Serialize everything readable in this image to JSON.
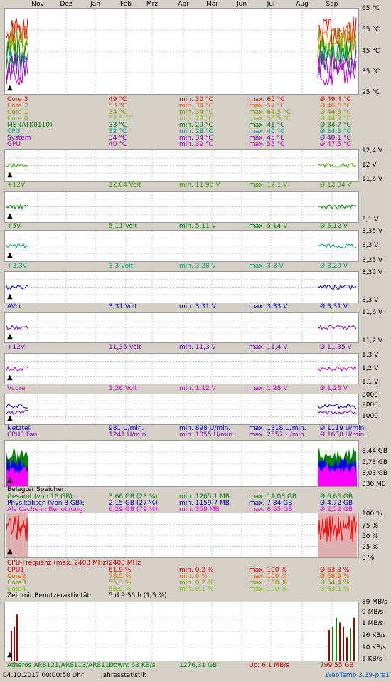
{
  "months": [
    "Nov",
    "Dez",
    "Jan",
    "Feb",
    "Mrz",
    "Apr",
    "Mai",
    "Jun",
    "Jul",
    "Aug",
    "Sep"
  ],
  "chart_data": [
    {
      "type": "line",
      "title": "",
      "yticks": [
        "65 °C",
        "55 °C",
        "45 °C",
        "35 °C",
        "25 °C"
      ],
      "ylim": [
        25,
        65
      ],
      "rows": [
        {
          "name": "Core 3",
          "cur": "49 °C",
          "min": "min. 30 °C",
          "max": "max. 65 °C",
          "avg": "Ø 49,4 °C",
          "color": "#e00000"
        },
        {
          "name": "Core 2",
          "cur": "53 °C",
          "min": "min. 34 °C",
          "max": "max. 57 °C",
          "avg": "Ø 46,6 °C",
          "color": "#ff6000"
        },
        {
          "name": "Core 1",
          "cur": "34 °C",
          "min": "min. 34 °C",
          "max": "max. 64,5 °C",
          "avg": "Ø 44,8 °C",
          "color": "#909000"
        },
        {
          "name": "Core 0",
          "cur": "52,5 °C",
          "min": "min. 29 °C",
          "max": "max. 56,5 °C",
          "avg": "Ø 44,9 °C",
          "color": "#80c000"
        },
        {
          "name": "MB (ATK0110)",
          "cur": "33 °C",
          "min": "min. 29 °C",
          "max": "max. 41 °C",
          "avg": "Ø 34,7 °C",
          "color": "#008000"
        },
        {
          "name": "CPU",
          "cur": "32 °C",
          "min": "min. 28 °C",
          "max": "max. 40 °C",
          "avg": "Ø 34,3 °C",
          "color": "#00a080"
        },
        {
          "name": "System",
          "cur": "34 °C",
          "min": "min. 34 °C",
          "max": "max. 45 °C",
          "avg": "Ø 40,1 °C",
          "color": "#8000c0"
        },
        {
          "name": "GPU",
          "cur": "40 °C",
          "min": "min. 39 °C",
          "max": "max. 55 °C",
          "avg": "Ø 47,5 °C",
          "color": "#c000c0"
        }
      ]
    },
    {
      "type": "line",
      "title": "",
      "yticks": [
        "12,4 V",
        "12 V",
        "11,6 V"
      ],
      "ylim": [
        11.6,
        12.4
      ],
      "rows": [
        {
          "name": "+12V",
          "cur": "12,04 Volt",
          "min": "min. 11,98 V",
          "max": "max. 12,1 V",
          "avg": "Ø 12,04 V",
          "color": "#40a000"
        }
      ]
    },
    {
      "type": "line",
      "title": "",
      "yticks": [
        "",
        "5,1 V"
      ],
      "ylim": [
        5.1,
        5.15
      ],
      "rows": [
        {
          "name": "+5V",
          "cur": "5,11 Volt",
          "min": "min. 5,11 V",
          "max": "max. 5,14 V",
          "avg": "Ø 5,12 V",
          "color": "#008000"
        }
      ]
    },
    {
      "type": "line",
      "title": "",
      "yticks": [
        "3,35 V",
        "3,3 V",
        "3,25 V"
      ],
      "ylim": [
        3.25,
        3.35
      ],
      "rows": [
        {
          "name": "+3,3V",
          "cur": "3,3 Volt",
          "min": "min. 3,28 V",
          "max": "max. 3,3 V",
          "avg": "Ø 3,29 V",
          "color": "#00a070"
        }
      ]
    },
    {
      "type": "line",
      "title": "",
      "yticks": [
        "3,35 V",
        "3,3 V"
      ],
      "ylim": [
        3.3,
        3.35
      ],
      "rows": [
        {
          "name": "AVcc",
          "cur": "3,31 Volt",
          "min": "min. 3,31 V",
          "max": "max. 3,33 V",
          "avg": "Ø 3,31 V",
          "color": "#0000c0"
        }
      ]
    },
    {
      "type": "line",
      "title": "",
      "yticks": [
        "11,6 V",
        "11,2 V"
      ],
      "ylim": [
        11.2,
        11.6
      ],
      "rows": [
        {
          "name": "+12V",
          "cur": "11,35 Volt",
          "min": "min. 11,3 V",
          "max": "max. 11,4 V",
          "avg": "Ø 11,35 V",
          "color": "#8000c0"
        }
      ]
    },
    {
      "type": "line",
      "title": "",
      "yticks": [
        "1,3 V",
        "1,2 V",
        "1,1 V"
      ],
      "ylim": [
        1.1,
        1.3
      ],
      "rows": [
        {
          "name": "Vcore",
          "cur": "1,26 Volt",
          "min": "min. 1,12 V",
          "max": "max. 1,28 V",
          "avg": "Ø 1,26 V",
          "color": "#c000c0"
        }
      ]
    },
    {
      "type": "line",
      "title": "",
      "yticks": [
        "3000",
        "2000",
        "1000"
      ],
      "ylim": [
        1000,
        3000
      ],
      "rows": [
        {
          "name": "Netzteil",
          "cur": "981 U/min.",
          "min": "min. 898 U/min.",
          "max": "max. 1318 U/min.",
          "avg": "Ø 1119 U/min.",
          "color": "#0000c0"
        },
        {
          "name": "CPU0 Fan",
          "cur": "1241 U/min.",
          "min": "min. 1055 U/min.",
          "max": "max. 2557 U/min.",
          "avg": "Ø 1630 U/min.",
          "color": "#8000c0"
        }
      ]
    },
    {
      "type": "area",
      "title": "Belegter Speicher:",
      "yticks": [
        "8,44 GB",
        "5,73 GB",
        "3,03 GB",
        "336 MB"
      ],
      "rows": [
        {
          "name": "Gesamt (von 16 GB):",
          "cur": "3,66 GB (23 %)",
          "min": "min. 1265,1 MB",
          "max": "max. 11,08 GB",
          "avg": "Ø 6,66 GB",
          "color": "#008000"
        },
        {
          "name": "Physikalisch (von 8 GB):",
          "cur": "2,15 GB (27 %)",
          "min": "min. 1159,7 MB",
          "max": "max. 7,84 GB",
          "avg": "Ø 4,72 GB",
          "color": "#0000c0"
        },
        {
          "name": "Als Cache in Benutzung:",
          "cur": "6,29 GB (79 %)",
          "min": "min. 359 MB",
          "max": "max. 6,65 GB",
          "avg": "Ø 2,52 GB",
          "color": "#ff00ff"
        }
      ]
    },
    {
      "type": "line",
      "title": "CPU-Frequenz (max. 2403 MHz):",
      "title_value": "2403 MHz",
      "yticks": [
        "100 %",
        "75 %",
        "50 %",
        "25 %",
        "0 %"
      ],
      "ylim": [
        0,
        100
      ],
      "rows": [
        {
          "name": "CPU1",
          "cur": "61,9 %",
          "min": "min. 0,2 %",
          "max": "max. 100 %",
          "avg": "Ø 63,3 %",
          "color": "#e00000"
        },
        {
          "name": "Core2",
          "cur": "78,5 %",
          "min": "min. 0 %",
          "max": "max. 100 %",
          "avg": "Ø 68,9 %",
          "color": "#ff6000"
        },
        {
          "name": "Core3",
          "cur": "55,3 %",
          "min": "min. 0,2 %",
          "max": "max. 100 %",
          "avg": "Ø 64,4 %",
          "color": "#909000"
        },
        {
          "name": "Core4",
          "cur": "68,9 %",
          "min": "min. 0,1 %",
          "max": "max. 100 %",
          "avg": "Ø 63,1 %",
          "color": "#80c000"
        }
      ],
      "activity_label": "Zeit mit Benutzeraktivität:",
      "activity_value": "5 d 9:55 h (1,5 %)"
    },
    {
      "type": "bar",
      "title": "",
      "yticks": [
        "89 MB/s",
        "9 MB/s",
        "1 MB/s",
        "96 KB/s",
        "10 KB/s",
        "1 KB/s"
      ],
      "net": {
        "name": "Atheros AR8121/AR8113/AR8114",
        "down": "Down: 63 KB/s",
        "total": "1276,31 GB",
        "up": "Up: 6,1 MB/s",
        "avg": "799,55 GB"
      }
    }
  ],
  "footer": {
    "datetime": "04.10.2017 00:00:50 Uhr",
    "stat": "Jahresstatistik",
    "brand": "WebTemp 3.39-pre1"
  },
  "colors": {
    "cpuBg": "#e0b0b0",
    "cpuLine": "#ff0000",
    "memGreen": "#008000",
    "memBlue": "#0000ff",
    "memPink": "#ff00ff"
  }
}
